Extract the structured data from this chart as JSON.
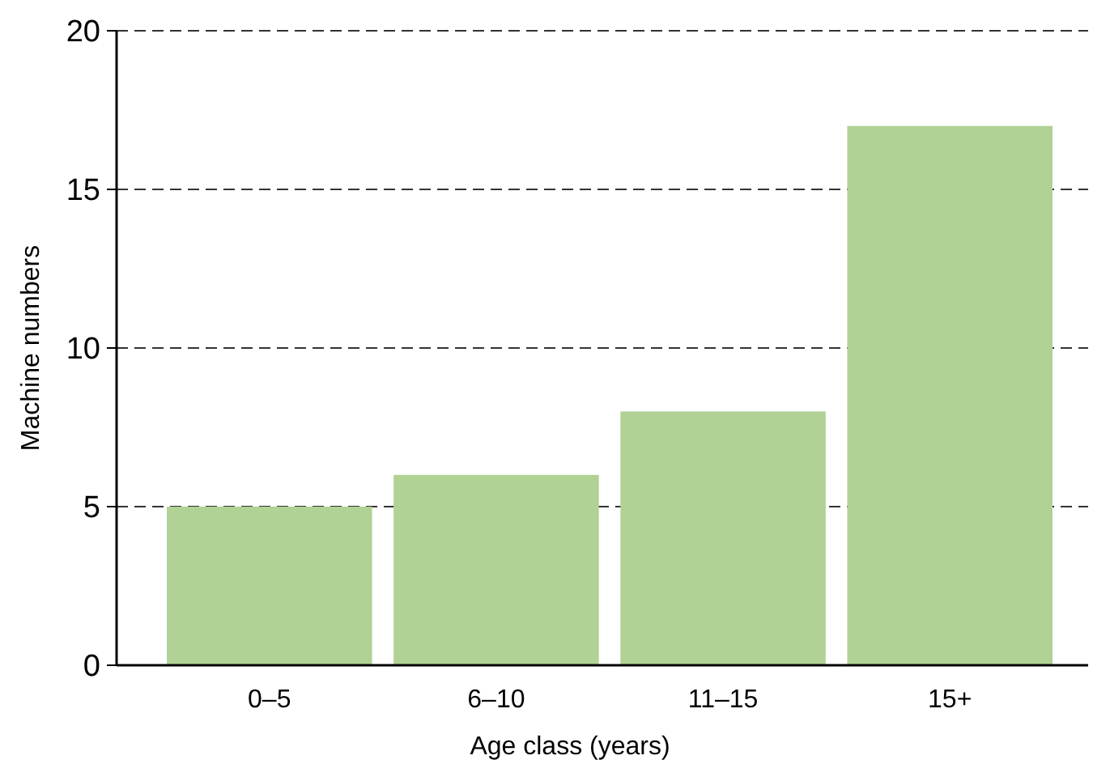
{
  "chart_data": {
    "type": "bar",
    "xlabel": "Age class (years)",
    "ylabel": "Machine numbers",
    "categories": [
      "0–5",
      "6–10",
      "11–15",
      "15+"
    ],
    "values": [
      5,
      6,
      8,
      17
    ],
    "color": "#b0d295",
    "ylim": [
      0,
      20
    ],
    "yticks": [
      0,
      5,
      10,
      15,
      20
    ],
    "grid": "y"
  }
}
